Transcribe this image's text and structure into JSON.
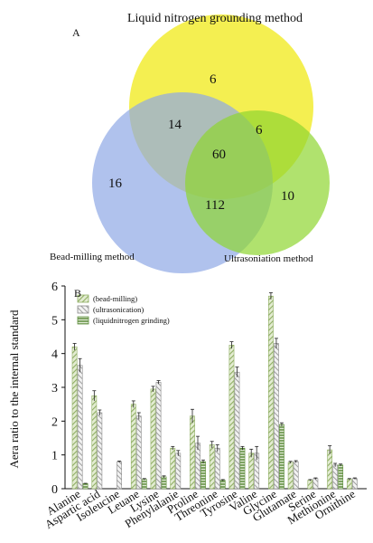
{
  "venn": {
    "panel_label": "A",
    "sets": [
      {
        "name": "Liquid nitrogen grounding method",
        "color": "#f2ec32"
      },
      {
        "name": "Bead-milling method",
        "color": "#8ea8e6"
      },
      {
        "name": "Ultrasoniation method",
        "color": "#8fd631"
      }
    ],
    "regions": {
      "top_only": "6",
      "top_left": "14",
      "top_right": "6",
      "center": "60",
      "left_only": "16",
      "left_right": "112",
      "right_only": "10"
    }
  },
  "chart_data": {
    "type": "bar",
    "panel_label": "B",
    "title": "",
    "xlabel": "",
    "ylabel": "Aera ratio to the internal standard",
    "ylim": [
      0,
      6
    ],
    "yticks": [
      0,
      1,
      2,
      3,
      4,
      5,
      6
    ],
    "legend_position": "top-left",
    "categories": [
      "Alanine",
      "Aspartic acid",
      "Isoleucine",
      "Leuane",
      "Lysine",
      "Phenylalanie",
      "Proline",
      "Threonine",
      "Tyrosine",
      "Valine",
      "Glycine",
      "Glutamate",
      "Serine",
      "Methionine",
      "Ornithine"
    ],
    "series": [
      {
        "name": "(bead-milling)",
        "values": [
          4.2,
          2.75,
          0,
          2.5,
          2.95,
          1.2,
          2.15,
          1.3,
          4.25,
          1.05,
          5.7,
          0.78,
          0.25,
          1.15,
          0.28
        ],
        "errors": [
          0.1,
          0.15,
          0,
          0.1,
          0.08,
          0.05,
          0.2,
          0.1,
          0.1,
          0.12,
          0.1,
          0.03,
          0.02,
          0.12,
          0.02
        ]
      },
      {
        "name": "(ultrasonication)",
        "values": [
          3.65,
          2.25,
          0.8,
          2.15,
          3.15,
          1.05,
          1.35,
          1.2,
          3.45,
          1.05,
          4.3,
          0.8,
          0.3,
          0.7,
          0.3
        ],
        "errors": [
          0.2,
          0.08,
          0.02,
          0.1,
          0.05,
          0.08,
          0.2,
          0.1,
          0.15,
          0.2,
          0.15,
          0.03,
          0.02,
          0.05,
          0.02
        ]
      },
      {
        "name": "(liquidnitrogen grinding)",
        "values": [
          0.15,
          0,
          0,
          0.28,
          0.35,
          0,
          0.8,
          0.25,
          1.2,
          0,
          1.9,
          0,
          0,
          0.7,
          0
        ],
        "errors": [
          0.01,
          0,
          0,
          0.02,
          0.03,
          0,
          0.05,
          0.02,
          0.05,
          0,
          0.05,
          0,
          0,
          0.03,
          0
        ]
      }
    ],
    "series_colors": [
      "#8fae63",
      "#8a8a8a",
      "#5f8e3e"
    ]
  }
}
